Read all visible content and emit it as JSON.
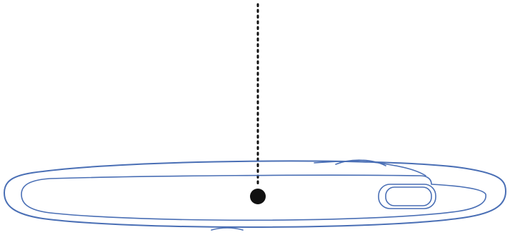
{
  "diagram": {
    "subject": "device-side-view",
    "colors": {
      "background": "#ffffff",
      "outline": "#4a6fb5",
      "marker": "#111111",
      "leader_line": "#111111"
    },
    "elements": [
      "outer-body-outline",
      "inner-edge-outline",
      "side-port",
      "button-recess",
      "callout-leader-line",
      "callout-marker-dot"
    ]
  }
}
